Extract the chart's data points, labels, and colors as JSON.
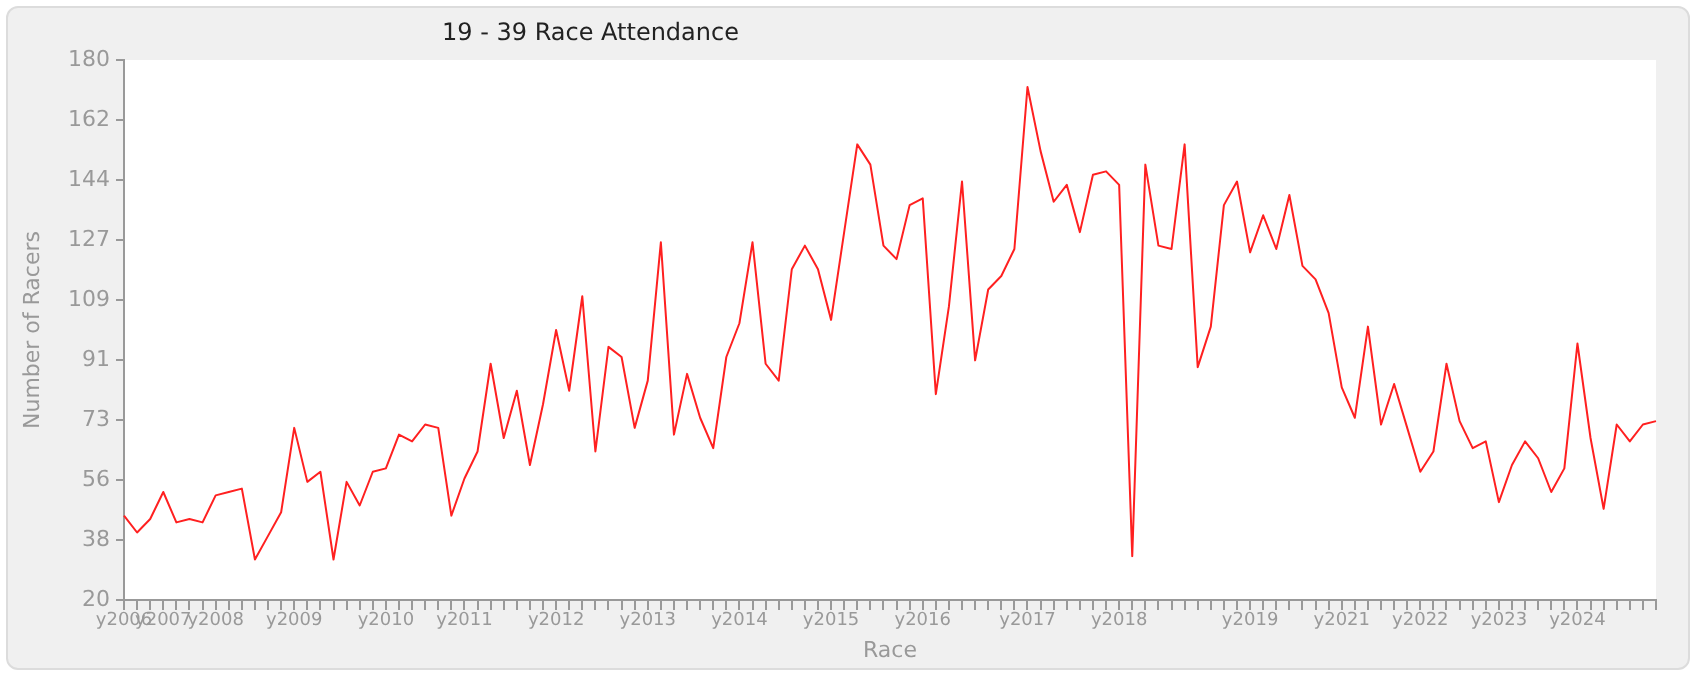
{
  "chart_data": {
    "type": "line",
    "title": "19 - 39 Race Attendance",
    "xlabel": "Race",
    "ylabel": "Number of Racers",
    "categories": [
      "y2006",
      null,
      null,
      "y2007",
      null,
      null,
      null,
      "y2008",
      null,
      null,
      null,
      null,
      null,
      "y2009",
      null,
      null,
      null,
      null,
      null,
      null,
      "y2010",
      null,
      null,
      null,
      null,
      null,
      "y2011",
      null,
      null,
      null,
      null,
      null,
      null,
      "y2012",
      null,
      null,
      null,
      null,
      null,
      null,
      "y2013",
      null,
      null,
      null,
      null,
      null,
      null,
      "y2014",
      null,
      null,
      null,
      null,
      null,
      null,
      "y2015",
      null,
      null,
      null,
      null,
      null,
      null,
      "y2016",
      null,
      null,
      null,
      null,
      null,
      null,
      null,
      "y2017",
      null,
      null,
      null,
      null,
      null,
      null,
      "y2018",
      null,
      null,
      null,
      null,
      null,
      null,
      null,
      null,
      null,
      "y2019",
      null,
      null,
      null,
      null,
      null,
      null,
      "y2021",
      null,
      null,
      null,
      null,
      null,
      "y2022",
      null,
      null,
      null,
      null,
      null,
      "y2023",
      null,
      null,
      null,
      null,
      null,
      "y2024",
      null,
      null,
      null,
      null,
      null,
      null
    ],
    "series": [
      {
        "color": "#ff2020",
        "values": [
          45,
          40,
          44,
          52,
          43,
          44,
          43,
          51,
          52,
          53,
          32,
          39,
          46,
          71,
          55,
          58,
          32,
          55,
          48,
          58,
          59,
          69,
          67,
          72,
          71,
          45,
          56,
          64,
          90,
          68,
          82,
          60,
          78,
          100,
          82,
          110,
          64,
          95,
          92,
          71,
          85,
          126,
          69,
          87,
          74,
          65,
          92,
          102,
          126,
          90,
          85,
          118,
          125,
          118,
          103,
          129,
          155,
          149,
          125,
          121,
          137,
          139,
          81,
          107,
          144,
          91,
          112,
          116,
          124,
          172,
          153,
          138,
          143,
          129,
          146,
          147,
          143,
          33,
          149,
          125,
          124,
          155,
          89,
          101,
          137,
          144,
          123,
          134,
          124,
          140,
          119,
          115,
          105,
          83,
          74,
          101,
          72,
          84,
          71,
          58,
          64,
          90,
          73,
          65,
          67,
          49,
          60,
          67,
          62,
          52,
          59,
          96,
          68,
          47,
          72,
          67,
          72,
          73
        ]
      }
    ],
    "ylim": [
      20,
      180
    ],
    "yticks": [
      20,
      {
        "value": 37.78,
        "label": "38"
      },
      {
        "value": 55.56,
        "label": "56"
      },
      {
        "value": 73.33,
        "label": "73"
      },
      {
        "value": 91.11,
        "label": "91"
      },
      {
        "value": 108.89,
        "label": "109"
      },
      {
        "value": 126.67,
        "label": "127"
      },
      {
        "value": 144.44,
        "label": "144"
      },
      {
        "value": 162.22,
        "label": "162"
      },
      180
    ],
    "grid": false,
    "legend": false,
    "marker": "none",
    "line_style": "solid"
  }
}
